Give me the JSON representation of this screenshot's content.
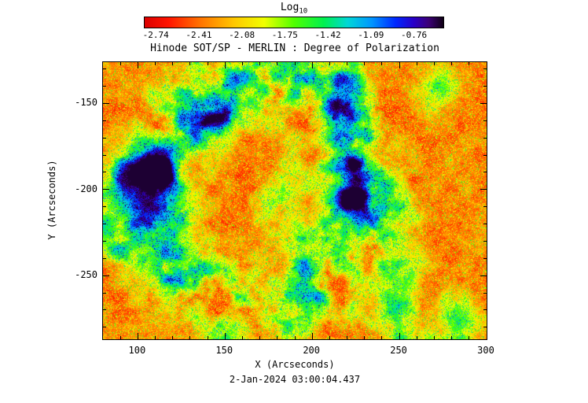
{
  "figure": {
    "title": "Hinode SOT/SP - MERLIN : Degree of Polarization",
    "caption": "2-Jan-2024 03:00:04.437",
    "colorbar": {
      "label": "Log",
      "label_subscript": "10",
      "tick_labels": [
        "-2.74",
        "-2.41",
        "-2.08",
        "-1.75",
        "-1.42",
        "-1.09",
        "-0.76"
      ]
    },
    "axes": {
      "xlabel": "X (Arcseconds)",
      "ylabel": "Y (Arcseconds)",
      "x_tick_labels": [
        "100",
        "150",
        "200",
        "250",
        "300"
      ],
      "y_tick_labels": [
        "-150",
        "-200",
        "-250"
      ]
    }
  },
  "chart_data": {
    "type": "heatmap",
    "title": "Hinode SOT/SP - MERLIN : Degree of Polarization",
    "xlabel": "X (Arcseconds)",
    "ylabel": "Y (Arcseconds)",
    "xlim": [
      80,
      300
    ],
    "ylim": [
      -287,
      -126
    ],
    "x_ticks": [
      100,
      150,
      200,
      250,
      300
    ],
    "y_ticks": [
      -150,
      -200,
      -250
    ],
    "x_minor_step": 10,
    "y_minor_step": 10,
    "timestamp": "2-Jan-2024 03:00:04.437",
    "colorbar": {
      "label": "Log10",
      "ticks": [
        -2.74,
        -2.41,
        -2.08,
        -1.75,
        -1.42,
        -1.09,
        -0.76
      ],
      "tick_start_frac": 0.04,
      "tick_step_frac": 0.144
    },
    "colormap_stops": [
      [
        0.0,
        "#dc0000"
      ],
      [
        0.08,
        "#ff1400"
      ],
      [
        0.18,
        "#ff6e00"
      ],
      [
        0.3,
        "#ffc800"
      ],
      [
        0.4,
        "#f0ff00"
      ],
      [
        0.5,
        "#50ff00"
      ],
      [
        0.6,
        "#00f050"
      ],
      [
        0.68,
        "#00d7d7"
      ],
      [
        0.76,
        "#0096ff"
      ],
      [
        0.84,
        "#0028ff"
      ],
      [
        0.9,
        "#2800c8"
      ],
      [
        0.95,
        "#3c0078"
      ],
      [
        1.0,
        "#0f0014"
      ]
    ],
    "field": {
      "description": "Log10 degree of polarization map. Quiet-sun background is a red/orange granular speckle near -2.6 to -2.3. A broken ring-shaped magnetic network of green/cyan/blue filaments near -1.7 to -1.1 surrounds plage, with two compact dark navy/purple concentrations (strong polarization, about -0.8) at roughly (110,-190) and (225,-205) arcsec.",
      "background_log10": -2.5,
      "network_log10": -1.4,
      "peaks": [
        {
          "x": 110,
          "y": -190,
          "log10_value": -0.8
        },
        {
          "x": 225,
          "y": -205,
          "log10_value": -0.8
        }
      ],
      "render": {
        "seed": 12345,
        "ring": {
          "cx": 172,
          "cy": -203,
          "r": 62,
          "w": 15
        },
        "blobs": [
          {
            "x": 110,
            "y": -190,
            "r": 7,
            "amp": 0.72
          },
          {
            "x": 225,
            "y": -205,
            "r": 5.5,
            "amp": 0.8
          },
          {
            "x": 97,
            "y": -196,
            "r": 10,
            "amp": 0.35
          },
          {
            "x": 272,
            "y": -140,
            "r": 8,
            "amp": 0.32
          },
          {
            "x": 285,
            "y": -276,
            "r": 9,
            "amp": 0.3
          }
        ]
      }
    }
  }
}
